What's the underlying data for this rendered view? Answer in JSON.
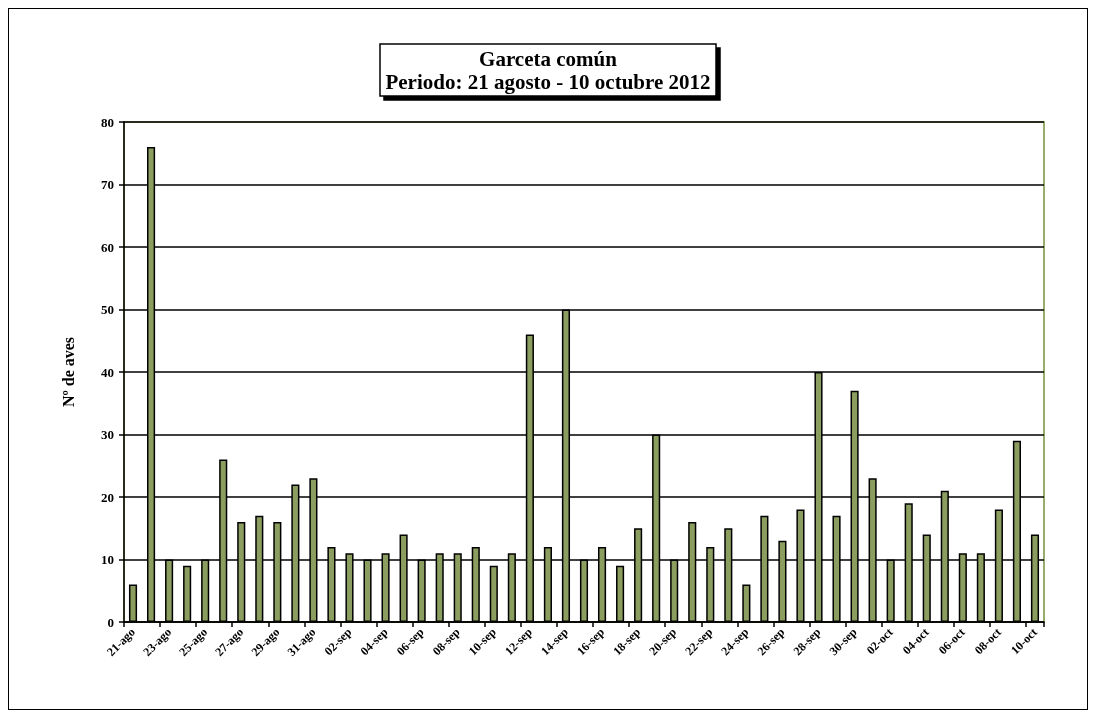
{
  "chart_data": {
    "type": "bar",
    "title": "Garceta común",
    "subtitle": "Periodo: 21 agosto - 10 octubre 2012",
    "ylabel": "Nº de aves",
    "categories": [
      "21-ago",
      null,
      "23-ago",
      null,
      "25-ago",
      null,
      "27-ago",
      null,
      "29-ago",
      null,
      "31-ago",
      null,
      "02-sep",
      null,
      "04-sep",
      null,
      "06-sep",
      null,
      "08-sep",
      null,
      "10-sep",
      null,
      "12-sep",
      null,
      "14-sep",
      null,
      "16-sep",
      null,
      "18-sep",
      null,
      "20-sep",
      null,
      "22-sep",
      null,
      "24-sep",
      null,
      "26-sep",
      null,
      "28-sep",
      null,
      "30-sep",
      null,
      "02-oct",
      null,
      "04-oct",
      null,
      "06-oct",
      null,
      "08-oct",
      null,
      "10-oct"
    ],
    "values": [
      6,
      76,
      10,
      9,
      10,
      26,
      16,
      17,
      16,
      22,
      23,
      12,
      11,
      10,
      11,
      14,
      10,
      11,
      11,
      12,
      9,
      11,
      46,
      12,
      50,
      10,
      12,
      9,
      15,
      30,
      10,
      16,
      12,
      15,
      6,
      17,
      13,
      18,
      40,
      17,
      37,
      23,
      10,
      19,
      14,
      21,
      11,
      11,
      18,
      29,
      14
    ],
    "color": "#8c9e5f",
    "ylim": [
      0,
      80
    ],
    "yticks": [
      0,
      10,
      20,
      30,
      40,
      50,
      60,
      70,
      80
    ],
    "grid": "y"
  }
}
